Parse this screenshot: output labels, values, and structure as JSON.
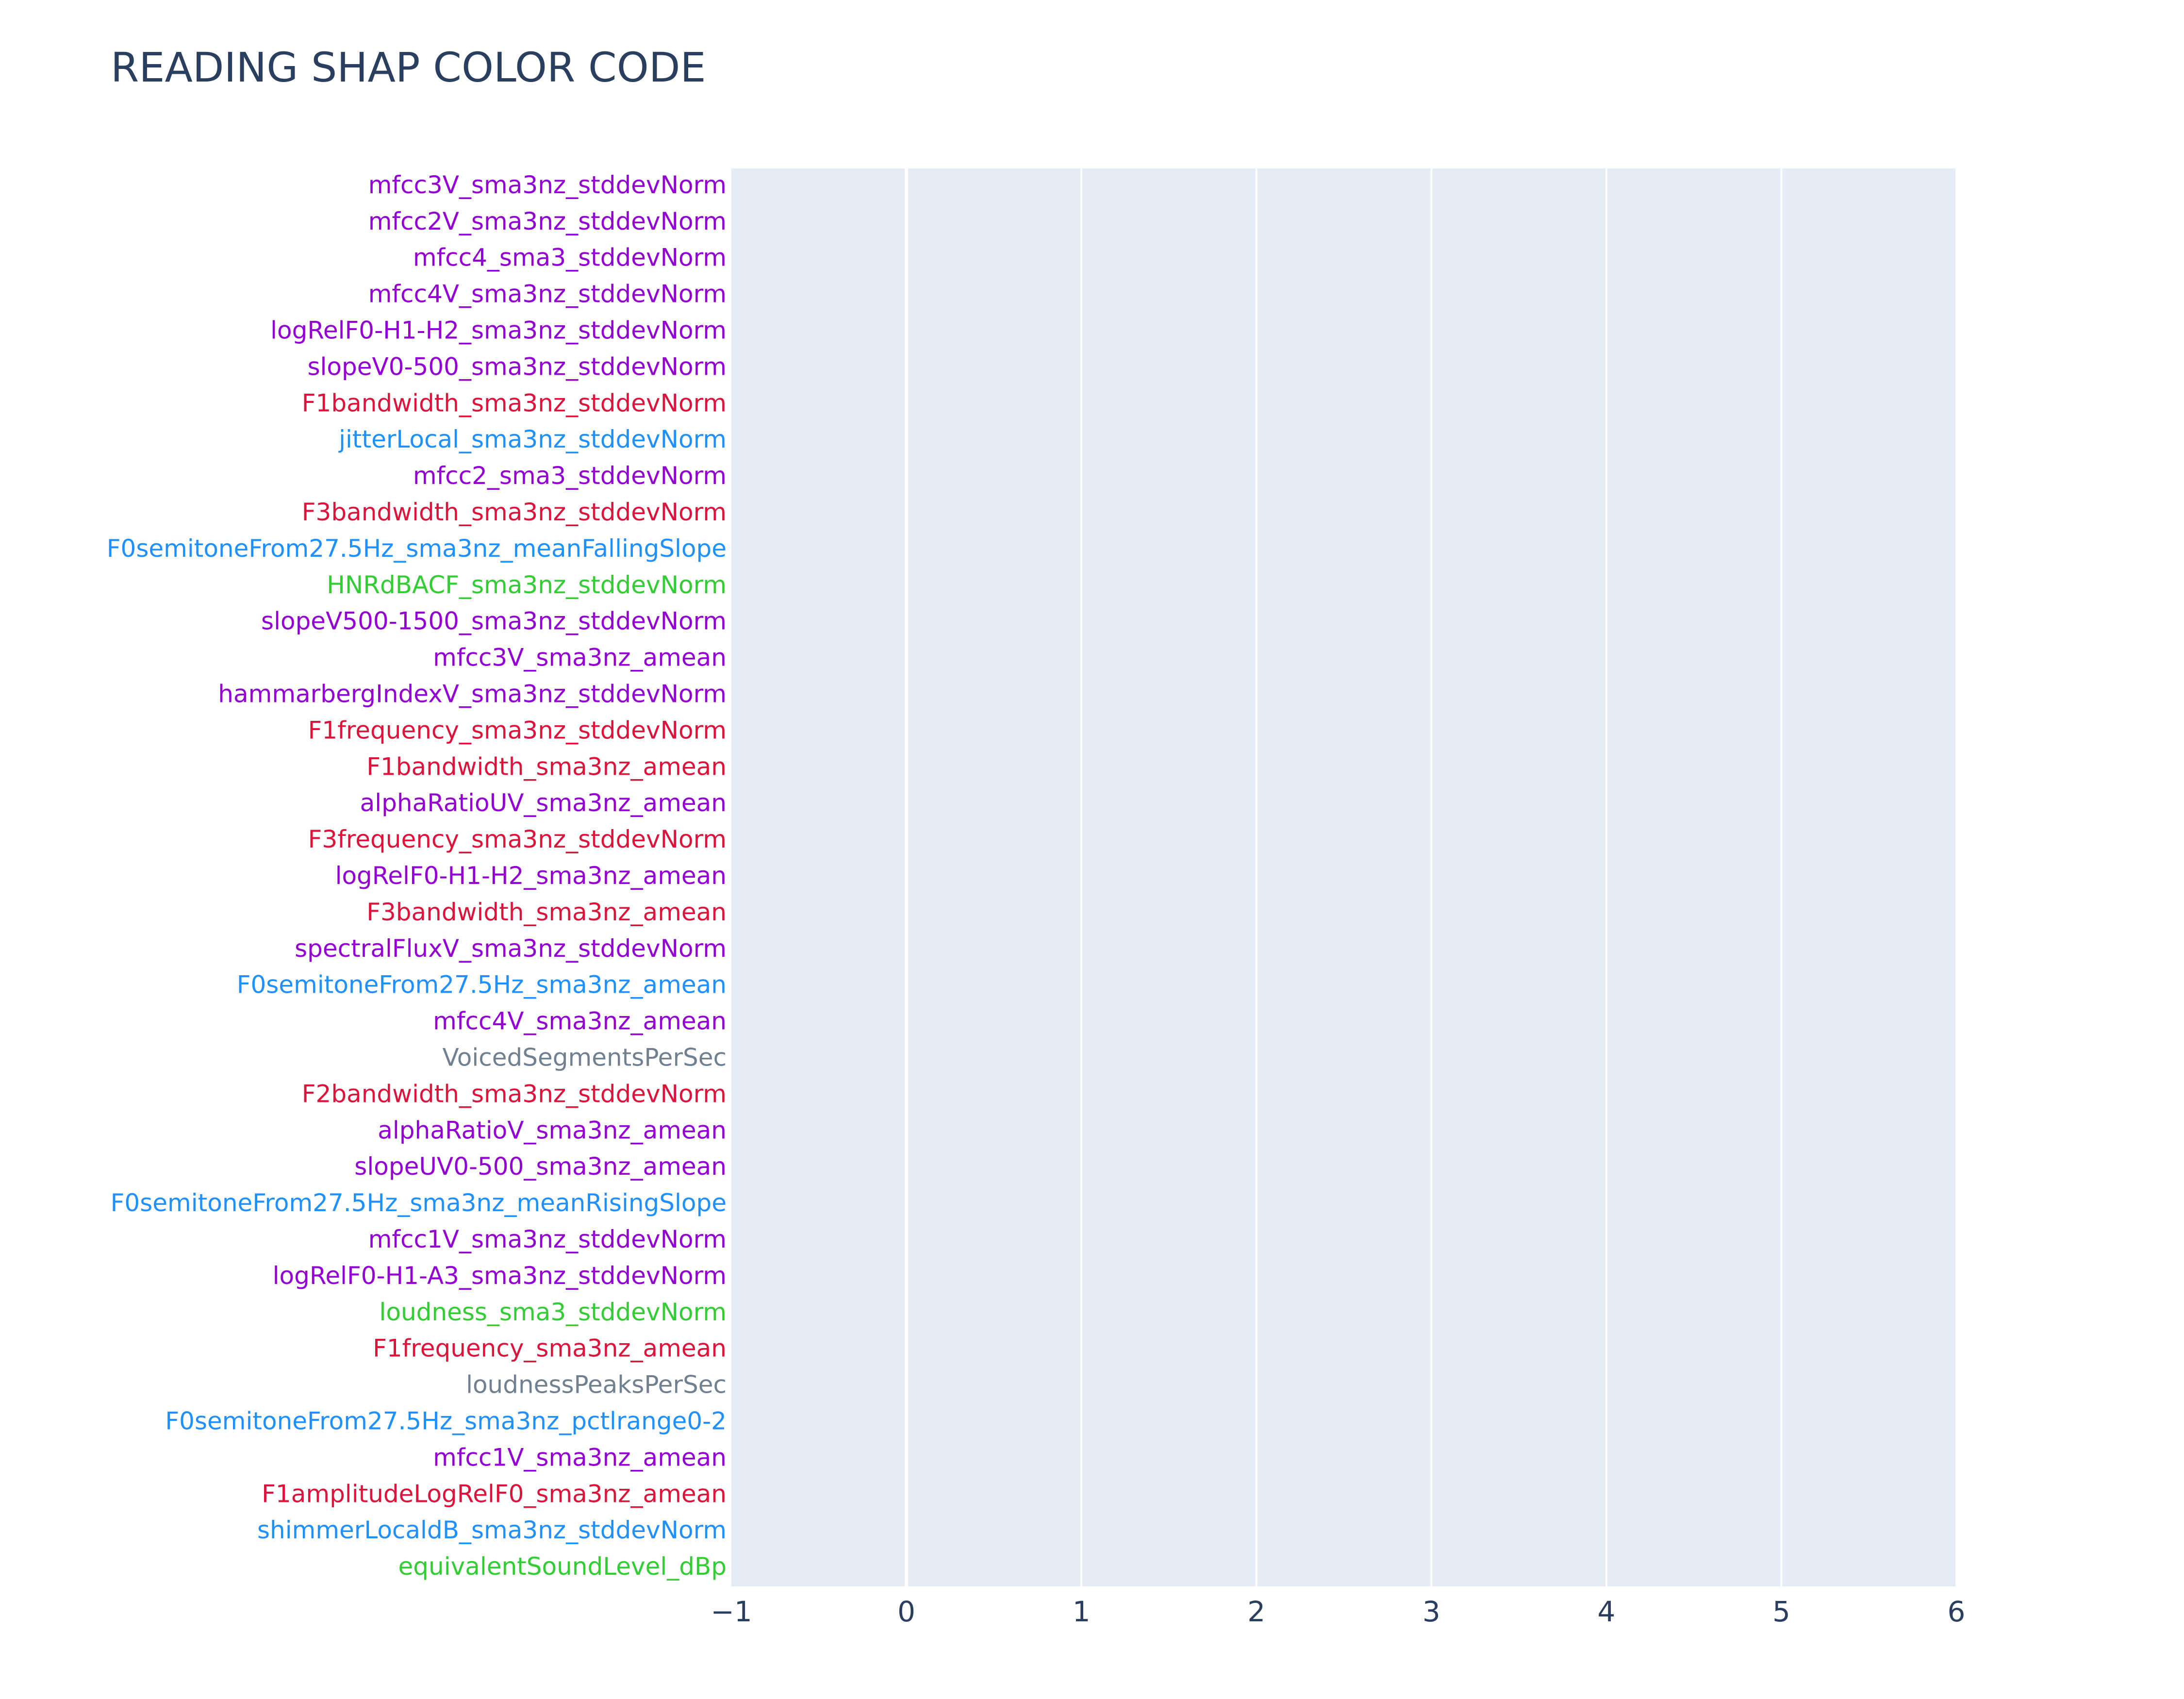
{
  "chart_data": {
    "type": "bar",
    "orientation": "horizontal",
    "title": "READING SHAP COLOR CODE",
    "xlabel": "",
    "ylabel": "",
    "xlim": [
      -1,
      6
    ],
    "x_ticks": [
      -1,
      0,
      1,
      2,
      3,
      4,
      5,
      6
    ],
    "x_tick_labels": [
      "−1",
      "0",
      "1",
      "2",
      "3",
      "4",
      "5",
      "6"
    ],
    "grid": true,
    "legend": "none",
    "plot_background": "#e5ecf6",
    "categories": [
      "mfcc3V_sma3nz_stddevNorm",
      "mfcc2V_sma3nz_stddevNorm",
      "mfcc4_sma3_stddevNorm",
      "mfcc4V_sma3nz_stddevNorm",
      "logRelF0-H1-H2_sma3nz_stddevNorm",
      "slopeV0-500_sma3nz_stddevNorm",
      "F1bandwidth_sma3nz_stddevNorm",
      "jitterLocal_sma3nz_stddevNorm",
      "mfcc2_sma3_stddevNorm",
      "F3bandwidth_sma3nz_stddevNorm",
      "F0semitoneFrom27.5Hz_sma3nz_meanFallingSlope",
      "HNRdBACF_sma3nz_stddevNorm",
      "slopeV500-1500_sma3nz_stddevNorm",
      "mfcc3V_sma3nz_amean",
      "hammarbergIndexV_sma3nz_stddevNorm",
      "F1frequency_sma3nz_stddevNorm",
      "F1bandwidth_sma3nz_amean",
      "alphaRatioUV_sma3nz_amean",
      "F3frequency_sma3nz_stddevNorm",
      "logRelF0-H1-H2_sma3nz_amean",
      "F3bandwidth_sma3nz_amean",
      "spectralFluxV_sma3nz_stddevNorm",
      "F0semitoneFrom27.5Hz_sma3nz_amean",
      "mfcc4V_sma3nz_amean",
      "VoicedSegmentsPerSec",
      "F2bandwidth_sma3nz_stddevNorm",
      "alphaRatioV_sma3nz_amean",
      "slopeUV0-500_sma3nz_amean",
      "F0semitoneFrom27.5Hz_sma3nz_meanRisingSlope",
      "mfcc1V_sma3nz_stddevNorm",
      "logRelF0-H1-A3_sma3nz_stddevNorm",
      "loudness_sma3_stddevNorm",
      "F1frequency_sma3nz_amean",
      "loudnessPeaksPerSec",
      "F0semitoneFrom27.5Hz_sma3nz_pctlrange0-2",
      "mfcc1V_sma3nz_amean",
      "F1amplitudeLogRelF0_sma3nz_amean",
      "shimmerLocaldB_sma3nz_stddevNorm",
      "equivalentSoundLevel_dBp"
    ],
    "category_colors": [
      "#9400d3",
      "#9400d3",
      "#9400d3",
      "#9400d3",
      "#9400d3",
      "#9400d3",
      "#dc143c",
      "#1e90ff",
      "#9400d3",
      "#dc143c",
      "#1e90ff",
      "#32cd32",
      "#9400d3",
      "#9400d3",
      "#9400d3",
      "#dc143c",
      "#dc143c",
      "#9400d3",
      "#dc143c",
      "#9400d3",
      "#dc143c",
      "#9400d3",
      "#1e90ff",
      "#9400d3",
      "#708090",
      "#dc143c",
      "#9400d3",
      "#9400d3",
      "#1e90ff",
      "#9400d3",
      "#9400d3",
      "#32cd32",
      "#dc143c",
      "#708090",
      "#1e90ff",
      "#9400d3",
      "#dc143c",
      "#1e90ff",
      "#32cd32"
    ]
  }
}
